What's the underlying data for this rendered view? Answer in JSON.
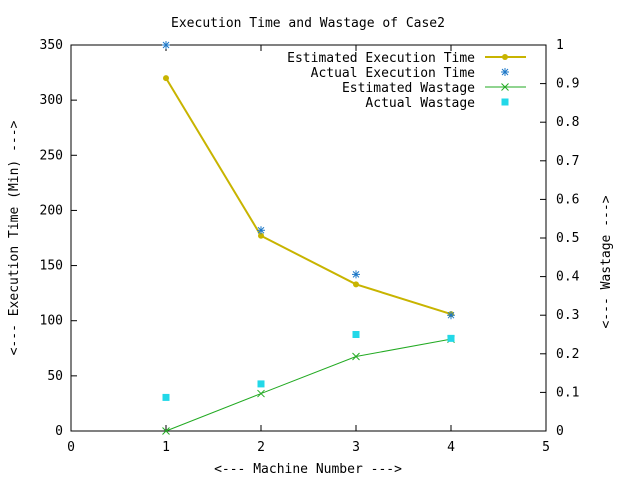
{
  "chart_data": {
    "type": "line",
    "title": "Execution Time and Wastage of Case2",
    "xlabel": "<--- Machine Number --->",
    "ylabel": "<--- Execution Time (Min) --->",
    "y2label": "<--- Wastage --->",
    "xlim": [
      0,
      5
    ],
    "ylim": [
      0,
      350
    ],
    "y2lim": [
      0,
      1
    ],
    "xticks": [
      "0",
      "1",
      "2",
      "3",
      "4",
      "5"
    ],
    "yticks": [
      "0",
      "50",
      "100",
      "150",
      "200",
      "250",
      "300",
      "350"
    ],
    "y2ticks": [
      "0",
      "0.1",
      "0.2",
      "0.3",
      "0.4",
      "0.5",
      "0.6",
      "0.7",
      "0.8",
      "0.9",
      "1"
    ],
    "grid": false,
    "legend_position": "top-right",
    "series": [
      {
        "name": "Estimated Execution Time",
        "axis": "left",
        "style": "line-point",
        "color": "#c8b400",
        "x": [
          1,
          2,
          3,
          4
        ],
        "y": [
          320,
          177,
          133,
          106
        ]
      },
      {
        "name": "Actual Execution Time",
        "axis": "left",
        "style": "star",
        "color": "#1e78c8",
        "x": [
          1,
          2,
          3,
          4
        ],
        "y": [
          350,
          182,
          142,
          105
        ]
      },
      {
        "name": "Estimated Wastage",
        "axis": "right",
        "style": "line-cross",
        "color": "#22aa22",
        "x": [
          1,
          2,
          3,
          4
        ],
        "y": [
          0.0,
          0.097,
          0.193,
          0.238
        ]
      },
      {
        "name": "Actual Wastage",
        "axis": "right",
        "style": "square",
        "color": "#22d8e8",
        "x": [
          1,
          2,
          3,
          4
        ],
        "y": [
          0.087,
          0.122,
          0.25,
          0.24
        ]
      }
    ]
  }
}
